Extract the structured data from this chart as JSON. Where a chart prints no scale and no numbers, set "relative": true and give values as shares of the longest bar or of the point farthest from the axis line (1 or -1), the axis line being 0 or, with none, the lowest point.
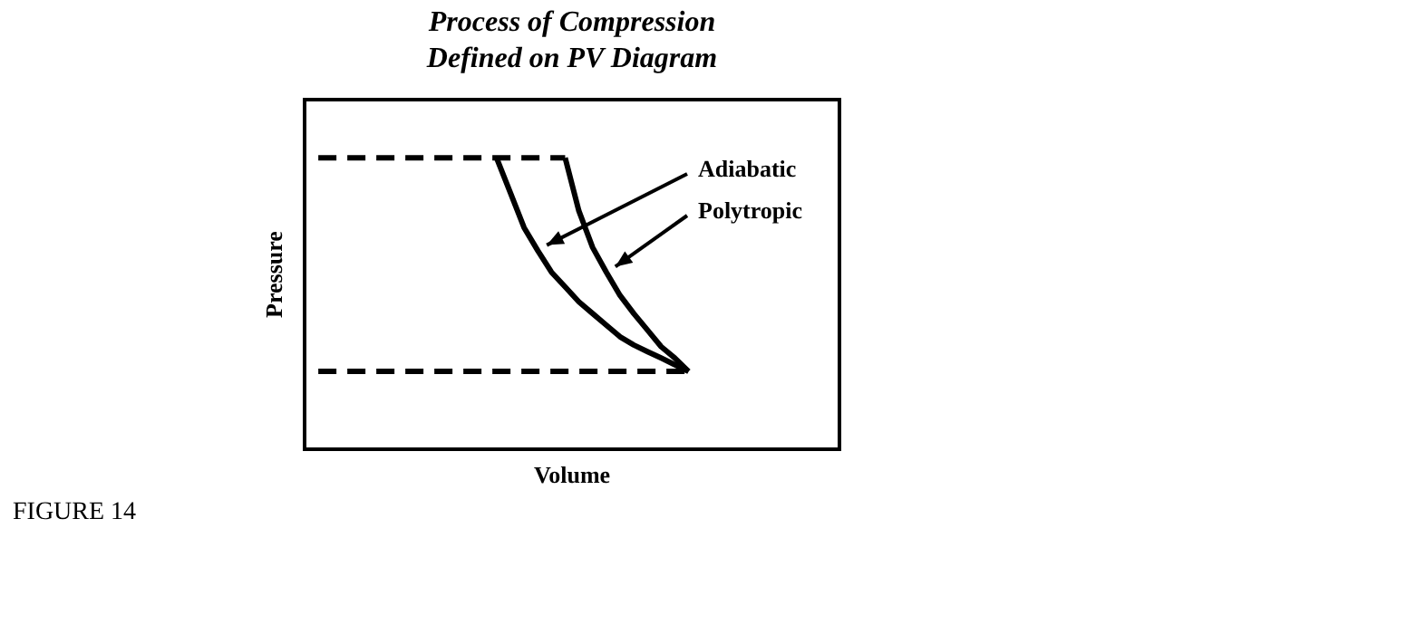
{
  "chart_data": {
    "type": "line",
    "title": "Process of Compression\nDefined on PV Diagram",
    "xlabel": "Volume",
    "ylabel": "Pressure",
    "relative": true,
    "legend": false,
    "grid": false,
    "marker": "none",
    "annotations": [
      "FIGURE 14"
    ],
    "categories": [
      null,
      null,
      null,
      null,
      null,
      null,
      null,
      null,
      null,
      null,
      null,
      null,
      null,
      null,
      null,
      null,
      null,
      null,
      null,
      null,
      null,
      null,
      null,
      null,
      null,
      null,
      null,
      null,
      null,
      null,
      null,
      null,
      null,
      null,
      null,
      null,
      null,
      null,
      null,
      null
    ],
    "series": [
      {
        "name": "Adiabatic",
        "color": "#000000",
        "line_style": "solid",
        "values": [
          null,
          null,
          null,
          null,
          null,
          null,
          null,
          null,
          null,
          null,
          null,
          null,
          null,
          null,
          1,
          0.881,
          0.761,
          0.682,
          0.608,
          0.557,
          0.506,
          0.466,
          0.426,
          0.386,
          0.358,
          0.335,
          0.313,
          0.29,
          0.267,
          null,
          null,
          null,
          null,
          null,
          null,
          null,
          null,
          null,
          null,
          null
        ]
      },
      {
        "name": "Polytropic",
        "color": "#000000",
        "line_style": "solid",
        "values": [
          null,
          null,
          null,
          null,
          null,
          null,
          null,
          null,
          null,
          null,
          null,
          null,
          null,
          null,
          null,
          null,
          null,
          null,
          null,
          1,
          0.818,
          0.693,
          0.608,
          0.528,
          0.466,
          0.409,
          0.352,
          0.313,
          0.267,
          null,
          null,
          null,
          null,
          null,
          null,
          null,
          null,
          null,
          null,
          null
        ]
      },
      {
        "color": "#000000",
        "line_style": "dashed",
        "values": [
          null,
          1,
          1,
          1,
          1,
          1,
          1,
          1,
          1,
          1,
          1,
          1,
          1,
          1,
          1,
          1,
          1,
          1,
          1,
          1,
          null,
          null,
          null,
          null,
          null,
          null,
          null,
          null,
          null,
          null,
          null,
          null,
          null,
          null,
          null,
          null,
          null,
          null,
          null,
          null
        ]
      },
      {
        "color": "#000000",
        "line_style": "dashed",
        "values": [
          null,
          0.267,
          0.267,
          0.267,
          0.267,
          0.267,
          0.267,
          0.267,
          0.267,
          0.267,
          0.267,
          0.267,
          0.267,
          0.267,
          0.267,
          0.267,
          0.267,
          0.267,
          0.267,
          0.267,
          0.267,
          0.267,
          0.267,
          0.267,
          0.267,
          0.267,
          0.267,
          0.267,
          0.267,
          null,
          null,
          null,
          null,
          null,
          null,
          null,
          null,
          null,
          null,
          null
        ]
      }
    ]
  }
}
